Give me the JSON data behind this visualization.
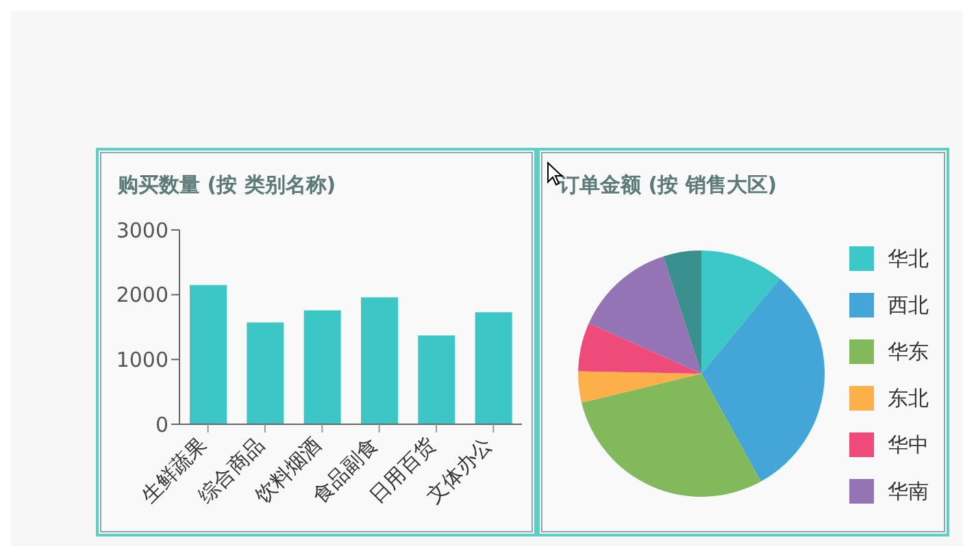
{
  "chart_data": [
    {
      "type": "bar",
      "title": "购买数量 (按 类别名称)",
      "categories": [
        "生鲜蔬果",
        "综合商品",
        "饮料烟酒",
        "食品副食",
        "日用百货",
        "文体办公"
      ],
      "values": [
        2150,
        1570,
        1760,
        1960,
        1370,
        1730
      ],
      "color": "#3cc6c6",
      "ylim": [
        0,
        3000
      ],
      "yticks": [
        0,
        1000,
        2000,
        3000
      ],
      "grid": false
    },
    {
      "type": "pie",
      "title": "订单金额 (按 销售大区)",
      "categories": [
        "华北",
        "西北",
        "华东",
        "东北",
        "华中",
        "华南",
        null
      ],
      "values": [
        11,
        31,
        29.2,
        4.1,
        6.4,
        13.3,
        5.0
      ],
      "colors": [
        "#3cc8c8",
        "#43a5d8",
        "#82b95a",
        "#fdb04a",
        "#ef4b7a",
        "#9474b5",
        "#3a8f8f"
      ],
      "legend": "right"
    }
  ]
}
